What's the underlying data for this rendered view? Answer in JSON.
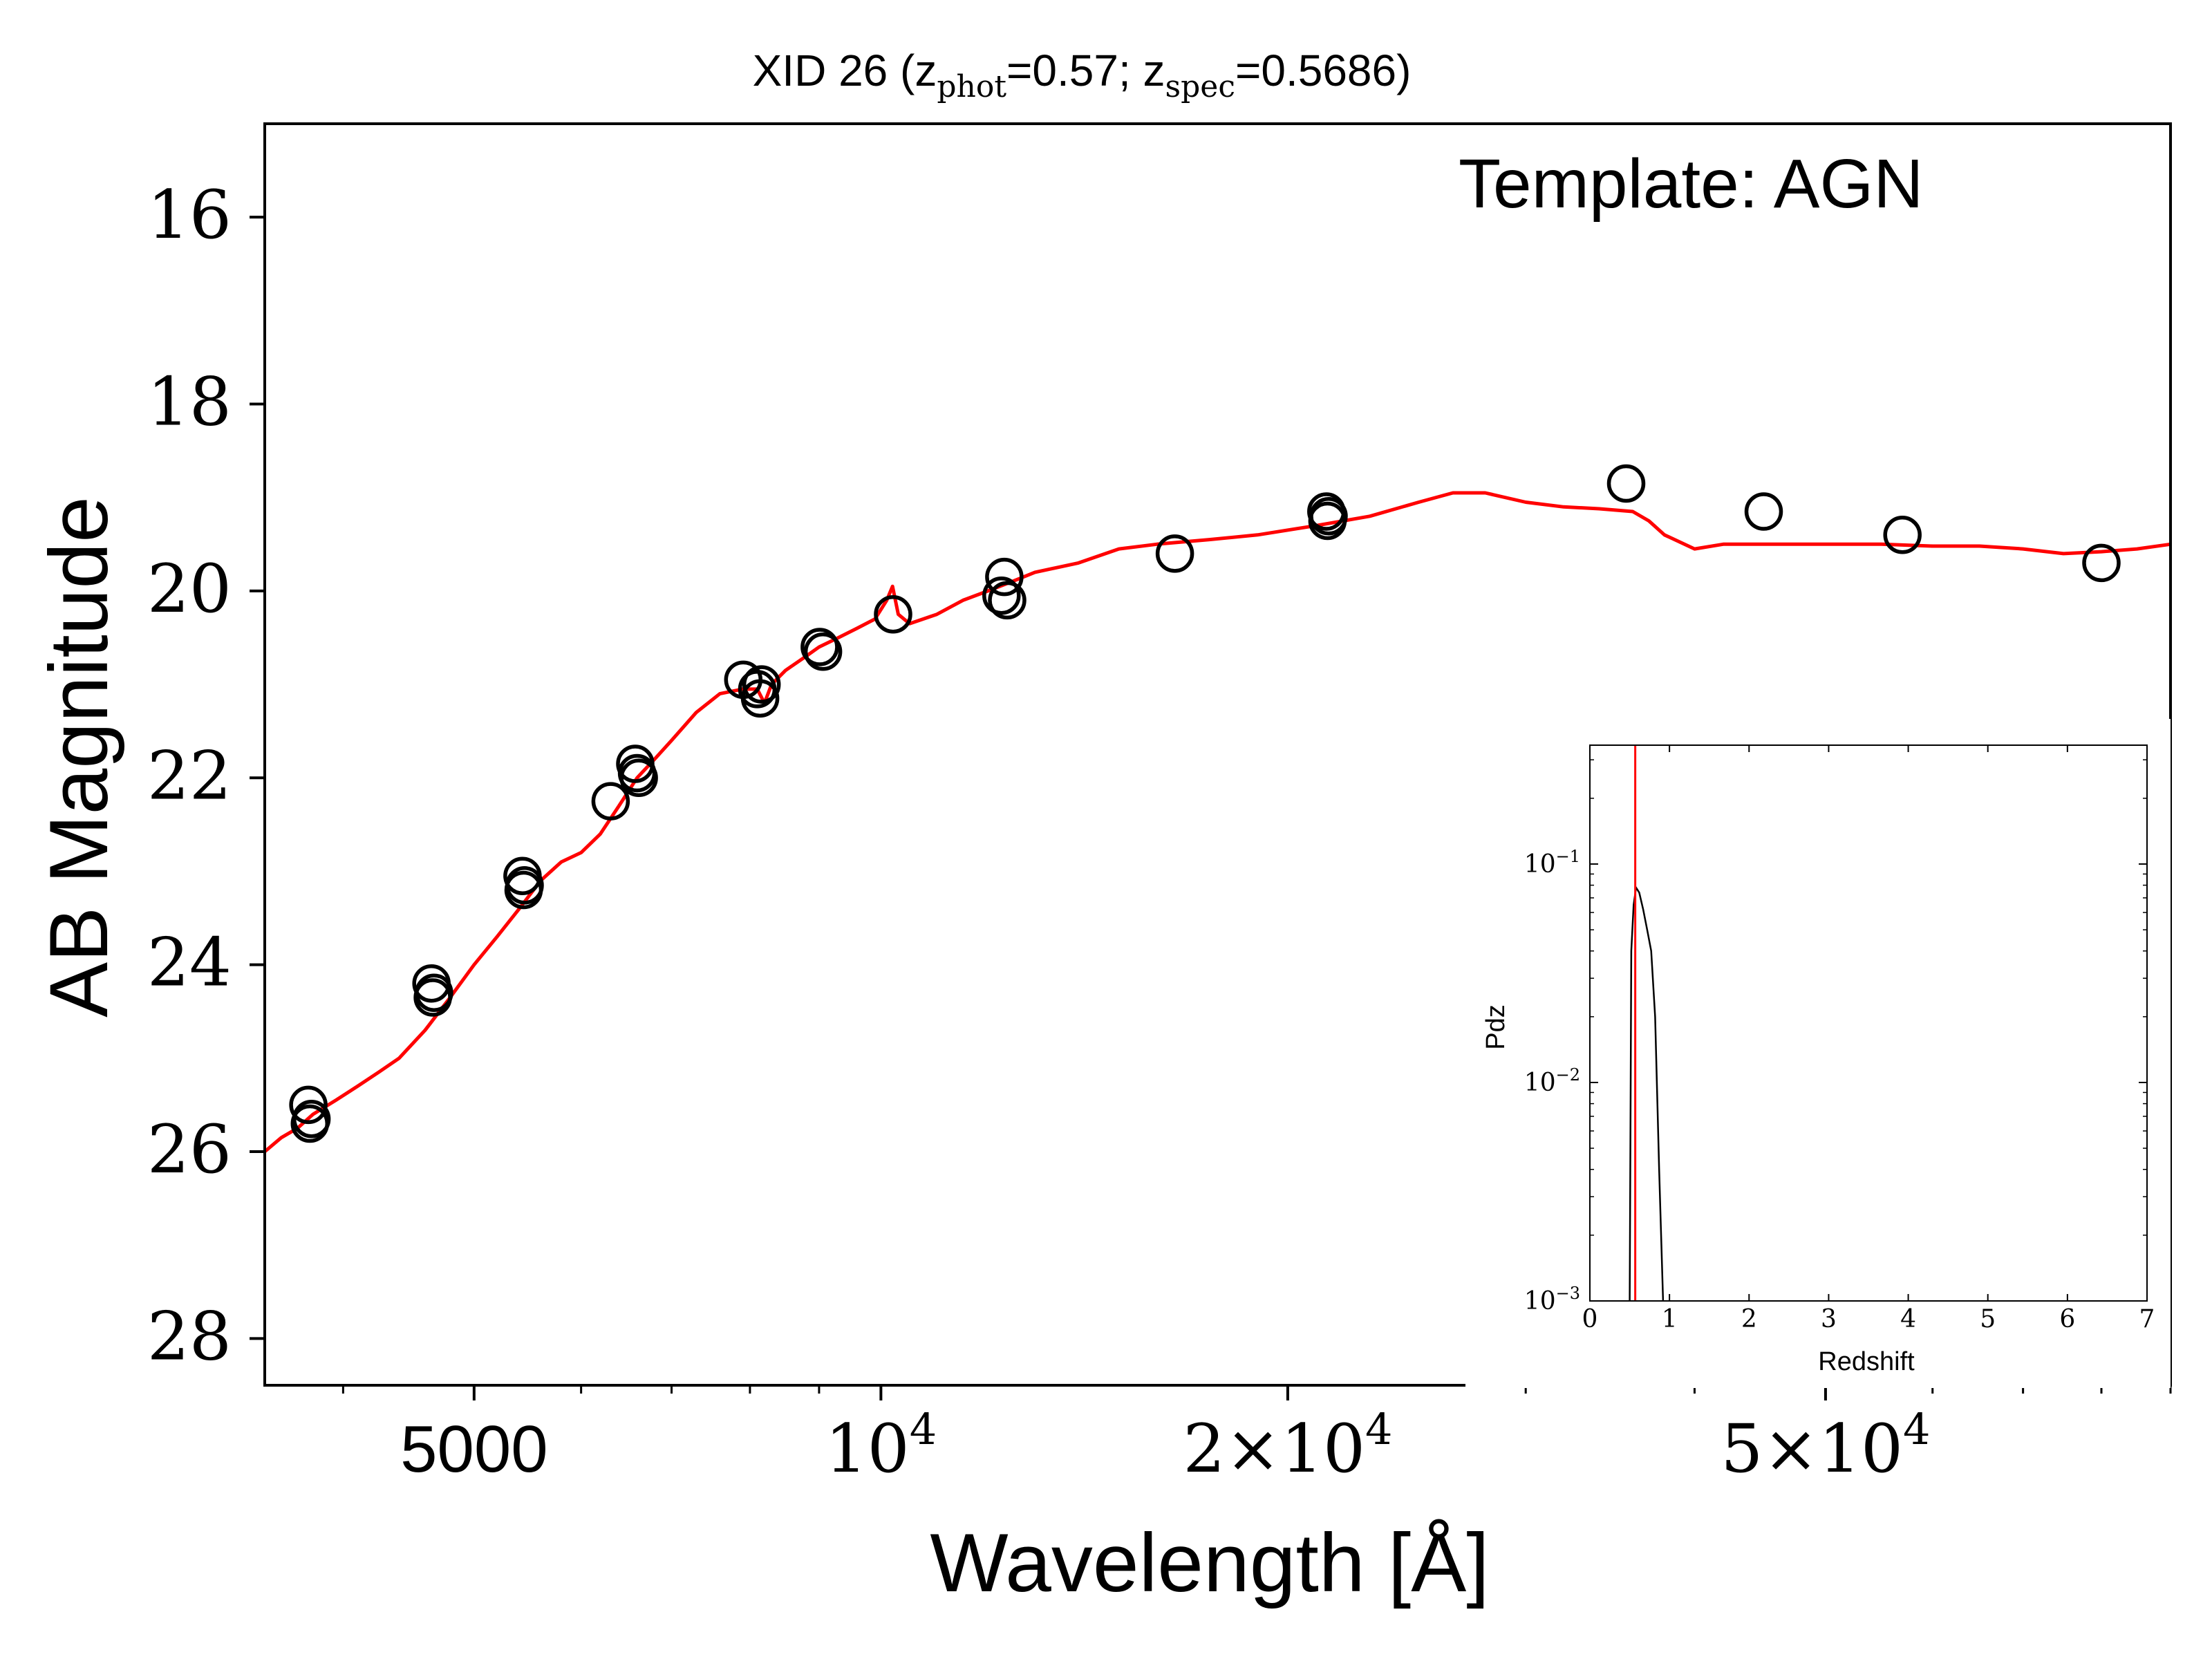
{
  "chart_data": {
    "type": "scatter",
    "title": {
      "prefix": "XID 26 (z",
      "sub1": "phot",
      "mid": "=0.57; z",
      "sub2": "spec",
      "suffix": "=0.5686)"
    },
    "xlabel": "Wavelength [Å]",
    "ylabel": "AB Magnitude",
    "annotation": "Template: AGN",
    "x_scale": "log",
    "xlim": [
      3500,
      90000
    ],
    "ylim": [
      28.5,
      15.0
    ],
    "y_inverted": true,
    "yticks": [
      16,
      18,
      20,
      22,
      24,
      26,
      28
    ],
    "xticks": [
      {
        "value": 5000,
        "mant": "5000",
        "exp": ""
      },
      {
        "value": 10000,
        "mant": "10",
        "exp": "4"
      },
      {
        "value": 20000,
        "mant": "2×10",
        "exp": "4"
      },
      {
        "value": 50000,
        "mant": "5×10",
        "exp": "4"
      }
    ],
    "grid": false,
    "colors": {
      "template": "#ff0000",
      "points": "#000000"
    },
    "series": [
      {
        "type": "points",
        "x": [
          3770,
          3780,
          3790,
          4650,
          4660,
          4670,
          5430,
          5440,
          5450,
          6310,
          6580,
          6600,
          6620,
          7910,
          8100,
          8140,
          8160,
          9010,
          9060,
          10210,
          12280,
          12340,
          12400,
          16500,
          21360,
          21400,
          21440,
          35600,
          45000,
          57000,
          80000
        ],
        "y": [
          25.5,
          25.7,
          25.65,
          24.2,
          24.35,
          24.3,
          23.05,
          23.2,
          23.15,
          22.25,
          21.85,
          21.95,
          22.0,
          20.95,
          21.05,
          21.15,
          21.0,
          20.6,
          20.65,
          20.25,
          20.05,
          19.85,
          20.1,
          19.6,
          19.15,
          19.25,
          19.2,
          18.85,
          19.15,
          19.4,
          19.7
        ]
      },
      {
        "type": "line",
        "x": [
          3500,
          3600,
          3700,
          3800,
          3950,
          4100,
          4250,
          4400,
          4600,
          4800,
          5000,
          5200,
          5400,
          5600,
          5800,
          6000,
          6200,
          6400,
          6600,
          6800,
          7000,
          7300,
          7600,
          7900,
          8100,
          8200,
          8300,
          8500,
          8800,
          9000,
          9300,
          9600,
          9900,
          10100,
          10200,
          10300,
          10500,
          11000,
          11500,
          12000,
          12500,
          13000,
          14000,
          15000,
          16000,
          17500,
          19000,
          21000,
          23000,
          25000,
          26500,
          28000,
          30000,
          32000,
          34000,
          36000,
          37000,
          38000,
          40000,
          42000,
          45000,
          50000,
          55000,
          60000,
          65000,
          70000,
          75000,
          80000,
          85000,
          90000
        ],
        "y": [
          26.0,
          25.85,
          25.75,
          25.6,
          25.45,
          25.3,
          25.15,
          25.0,
          24.7,
          24.35,
          24.0,
          23.7,
          23.4,
          23.1,
          22.9,
          22.8,
          22.6,
          22.3,
          22.0,
          21.8,
          21.6,
          21.3,
          21.1,
          21.05,
          21.05,
          21.2,
          21.0,
          20.85,
          20.7,
          20.6,
          20.5,
          20.4,
          20.3,
          20.1,
          19.95,
          20.25,
          20.35,
          20.25,
          20.1,
          20.0,
          19.9,
          19.8,
          19.7,
          19.55,
          19.5,
          19.45,
          19.4,
          19.3,
          19.2,
          19.05,
          18.95,
          18.95,
          19.05,
          19.1,
          19.12,
          19.15,
          19.25,
          19.4,
          19.55,
          19.5,
          19.5,
          19.5,
          19.5,
          19.52,
          19.52,
          19.55,
          19.6,
          19.58,
          19.55,
          19.5
        ]
      }
    ]
  },
  "inset": {
    "xlabel": "Redshift",
    "ylabel": "Pdz",
    "xlim": [
      0,
      7
    ],
    "xticks": [
      "0",
      "1",
      "2",
      "3",
      "4",
      "5",
      "6",
      "7"
    ],
    "y_scale": "log",
    "ylim": [
      0.001,
      0.35
    ],
    "yticks": [
      {
        "value": 0.1,
        "mant": "10",
        "exp": "−1"
      },
      {
        "value": 0.01,
        "mant": "10",
        "exp": "−2"
      },
      {
        "value": 0.001,
        "mant": "10",
        "exp": "−3"
      }
    ],
    "vline": 0.57,
    "colors": {
      "vline": "#ff0000",
      "curve": "#000000"
    },
    "curve": {
      "z": [
        0.5,
        0.52,
        0.55,
        0.58,
        0.62,
        0.67,
        0.72,
        0.77,
        0.82,
        0.87,
        0.92
      ],
      "p": [
        0.001,
        0.04,
        0.065,
        0.078,
        0.074,
        0.062,
        0.05,
        0.04,
        0.02,
        0.004,
        0.001
      ]
    }
  }
}
